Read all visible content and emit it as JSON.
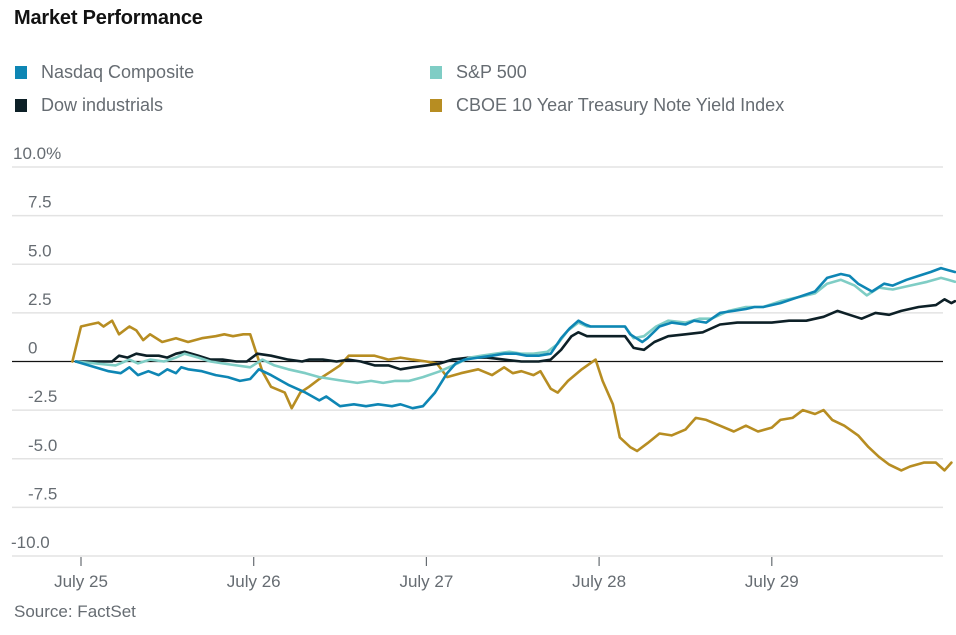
{
  "chart_data": {
    "type": "line",
    "title": "Market Performance",
    "source": "Source: FactSet",
    "xlabel": "",
    "ylabel": "",
    "ylim": [
      -10,
      10
    ],
    "yticks": [
      {
        "value": 10,
        "label": "10.0%"
      },
      {
        "value": 7.5,
        "label": "7.5"
      },
      {
        "value": 5,
        "label": "5.0"
      },
      {
        "value": 2.5,
        "label": "2.5"
      },
      {
        "value": 0,
        "label": "0"
      },
      {
        "value": -2.5,
        "label": "-2.5"
      },
      {
        "value": -5,
        "label": "-5.0"
      },
      {
        "value": -7.5,
        "label": "-7.5"
      },
      {
        "value": -10,
        "label": "-10.0"
      }
    ],
    "xlim": [
      -0.4,
      5.0
    ],
    "xticks": [
      {
        "value": 0,
        "label": "July 25"
      },
      {
        "value": 1,
        "label": "July 26"
      },
      {
        "value": 2,
        "label": "July 27"
      },
      {
        "value": 3,
        "label": "July 28"
      },
      {
        "value": 4,
        "label": "July 29"
      }
    ],
    "grid": true,
    "legend_position": "top",
    "series": [
      {
        "name": "Nasdaq Composite",
        "color": "#0e86b4",
        "points": [
          [
            -0.03,
            0
          ],
          [
            0.16,
            -0.5
          ],
          [
            0.23,
            -0.6
          ],
          [
            0.28,
            -0.3
          ],
          [
            0.33,
            -0.7
          ],
          [
            0.39,
            -0.5
          ],
          [
            0.45,
            -0.7
          ],
          [
            0.5,
            -0.4
          ],
          [
            0.55,
            -0.6
          ],
          [
            0.58,
            -0.3
          ],
          [
            0.62,
            -0.4
          ],
          [
            0.7,
            -0.5
          ],
          [
            0.78,
            -0.7
          ],
          [
            0.85,
            -0.8
          ],
          [
            0.92,
            -1.0
          ],
          [
            0.98,
            -0.9
          ],
          [
            1.03,
            -0.4
          ],
          [
            1.1,
            -0.7
          ],
          [
            1.2,
            -1.2
          ],
          [
            1.3,
            -1.6
          ],
          [
            1.38,
            -2.0
          ],
          [
            1.42,
            -1.8
          ],
          [
            1.5,
            -2.3
          ],
          [
            1.58,
            -2.2
          ],
          [
            1.65,
            -2.3
          ],
          [
            1.72,
            -2.2
          ],
          [
            1.8,
            -2.3
          ],
          [
            1.85,
            -2.2
          ],
          [
            1.92,
            -2.4
          ],
          [
            1.98,
            -2.3
          ],
          [
            2.05,
            -1.6
          ],
          [
            2.12,
            -0.6
          ],
          [
            2.17,
            -0.1
          ],
          [
            2.22,
            0.1
          ],
          [
            2.3,
            0.2
          ],
          [
            2.38,
            0.3
          ],
          [
            2.45,
            0.4
          ],
          [
            2.52,
            0.4
          ],
          [
            2.58,
            0.3
          ],
          [
            2.65,
            0.3
          ],
          [
            2.72,
            0.4
          ],
          [
            2.78,
            1.2
          ],
          [
            2.83,
            1.7
          ],
          [
            2.88,
            2.1
          ],
          [
            2.92,
            1.9
          ],
          [
            2.95,
            1.8
          ],
          [
            3.0,
            1.8
          ],
          [
            3.05,
            1.8
          ],
          [
            3.15,
            1.8
          ],
          [
            3.18,
            1.4
          ],
          [
            3.25,
            1.0
          ],
          [
            3.28,
            1.2
          ],
          [
            3.35,
            1.8
          ],
          [
            3.42,
            2.0
          ],
          [
            3.5,
            1.9
          ],
          [
            3.55,
            2.1
          ],
          [
            3.62,
            2.0
          ],
          [
            3.7,
            2.5
          ],
          [
            3.78,
            2.6
          ],
          [
            3.85,
            2.7
          ],
          [
            3.9,
            2.8
          ],
          [
            3.95,
            2.8
          ],
          [
            4.05,
            3.0
          ],
          [
            4.15,
            3.3
          ],
          [
            4.25,
            3.6
          ],
          [
            4.32,
            4.3
          ],
          [
            4.4,
            4.5
          ],
          [
            4.45,
            4.4
          ],
          [
            4.5,
            4.0
          ],
          [
            4.58,
            3.6
          ],
          [
            4.65,
            4.0
          ],
          [
            4.7,
            3.9
          ],
          [
            4.78,
            4.2
          ],
          [
            4.85,
            4.4
          ],
          [
            4.92,
            4.6
          ],
          [
            4.98,
            4.8
          ],
          [
            5.02,
            4.7
          ],
          [
            5.06,
            4.6
          ]
        ]
      },
      {
        "name": "S&P 500",
        "color": "#7fcdc5",
        "points": [
          [
            -0.03,
            0
          ],
          [
            0.2,
            -0.2
          ],
          [
            0.28,
            0.1
          ],
          [
            0.33,
            -0.1
          ],
          [
            0.4,
            0.1
          ],
          [
            0.48,
            0.0
          ],
          [
            0.55,
            0.2
          ],
          [
            0.6,
            0.4
          ],
          [
            0.68,
            0.2
          ],
          [
            0.75,
            0.0
          ],
          [
            0.82,
            -0.1
          ],
          [
            0.9,
            -0.2
          ],
          [
            0.98,
            -0.3
          ],
          [
            1.05,
            0.1
          ],
          [
            1.12,
            -0.2
          ],
          [
            1.2,
            -0.4
          ],
          [
            1.3,
            -0.6
          ],
          [
            1.38,
            -0.8
          ],
          [
            1.45,
            -0.9
          ],
          [
            1.52,
            -1.0
          ],
          [
            1.6,
            -1.1
          ],
          [
            1.68,
            -1.0
          ],
          [
            1.75,
            -1.1
          ],
          [
            1.82,
            -1.0
          ],
          [
            1.9,
            -1.0
          ],
          [
            1.98,
            -0.8
          ],
          [
            2.08,
            -0.5
          ],
          [
            2.18,
            -0.1
          ],
          [
            2.25,
            0.2
          ],
          [
            2.32,
            0.3
          ],
          [
            2.4,
            0.4
          ],
          [
            2.48,
            0.5
          ],
          [
            2.55,
            0.4
          ],
          [
            2.62,
            0.4
          ],
          [
            2.7,
            0.5
          ],
          [
            2.76,
            0.9
          ],
          [
            2.82,
            1.6
          ],
          [
            2.88,
            2.0
          ],
          [
            2.93,
            1.8
          ],
          [
            3.0,
            1.8
          ],
          [
            3.15,
            1.8
          ],
          [
            3.2,
            1.2
          ],
          [
            3.26,
            1.3
          ],
          [
            3.33,
            1.8
          ],
          [
            3.4,
            2.1
          ],
          [
            3.5,
            2.0
          ],
          [
            3.58,
            2.2
          ],
          [
            3.65,
            2.2
          ],
          [
            3.75,
            2.6
          ],
          [
            3.85,
            2.8
          ],
          [
            3.95,
            2.8
          ],
          [
            4.05,
            3.1
          ],
          [
            4.15,
            3.3
          ],
          [
            4.25,
            3.5
          ],
          [
            4.32,
            4.0
          ],
          [
            4.4,
            4.2
          ],
          [
            4.48,
            3.9
          ],
          [
            4.55,
            3.4
          ],
          [
            4.62,
            3.8
          ],
          [
            4.7,
            3.7
          ],
          [
            4.8,
            3.9
          ],
          [
            4.9,
            4.1
          ],
          [
            4.98,
            4.3
          ],
          [
            5.02,
            4.2
          ],
          [
            5.06,
            4.1
          ]
        ]
      },
      {
        "name": "Dow industrials",
        "color": "#0d2027",
        "points": [
          [
            -0.03,
            0
          ],
          [
            0.18,
            0.0
          ],
          [
            0.22,
            0.3
          ],
          [
            0.27,
            0.2
          ],
          [
            0.32,
            0.4
          ],
          [
            0.38,
            0.3
          ],
          [
            0.45,
            0.3
          ],
          [
            0.5,
            0.2
          ],
          [
            0.55,
            0.4
          ],
          [
            0.6,
            0.5
          ],
          [
            0.68,
            0.3
          ],
          [
            0.75,
            0.1
          ],
          [
            0.82,
            0.1
          ],
          [
            0.9,
            0.0
          ],
          [
            0.96,
            0.0
          ],
          [
            1.02,
            0.4
          ],
          [
            1.1,
            0.3
          ],
          [
            1.2,
            0.1
          ],
          [
            1.28,
            0.0
          ],
          [
            1.32,
            0.1
          ],
          [
            1.4,
            0.1
          ],
          [
            1.48,
            0.0
          ],
          [
            1.55,
            0.1
          ],
          [
            1.62,
            0.0
          ],
          [
            1.7,
            -0.2
          ],
          [
            1.78,
            -0.2
          ],
          [
            1.85,
            -0.4
          ],
          [
            1.92,
            -0.3
          ],
          [
            2.0,
            -0.2
          ],
          [
            2.08,
            -0.1
          ],
          [
            2.15,
            0.1
          ],
          [
            2.25,
            0.2
          ],
          [
            2.35,
            0.2
          ],
          [
            2.45,
            0.1
          ],
          [
            2.55,
            0.0
          ],
          [
            2.65,
            0.0
          ],
          [
            2.72,
            0.1
          ],
          [
            2.78,
            0.6
          ],
          [
            2.84,
            1.3
          ],
          [
            2.88,
            1.5
          ],
          [
            2.93,
            1.3
          ],
          [
            3.0,
            1.3
          ],
          [
            3.15,
            1.3
          ],
          [
            3.2,
            0.7
          ],
          [
            3.26,
            0.6
          ],
          [
            3.32,
            1.0
          ],
          [
            3.4,
            1.3
          ],
          [
            3.5,
            1.4
          ],
          [
            3.6,
            1.5
          ],
          [
            3.7,
            1.9
          ],
          [
            3.8,
            2.0
          ],
          [
            3.9,
            2.0
          ],
          [
            4.0,
            2.0
          ],
          [
            4.1,
            2.1
          ],
          [
            4.2,
            2.1
          ],
          [
            4.3,
            2.3
          ],
          [
            4.38,
            2.6
          ],
          [
            4.45,
            2.4
          ],
          [
            4.52,
            2.2
          ],
          [
            4.6,
            2.5
          ],
          [
            4.68,
            2.4
          ],
          [
            4.75,
            2.6
          ],
          [
            4.85,
            2.8
          ],
          [
            4.95,
            2.9
          ],
          [
            5.0,
            3.2
          ],
          [
            5.04,
            3.0
          ],
          [
            5.06,
            3.1
          ]
        ]
      },
      {
        "name": "CBOE 10 Year Treasury Note Yield Index",
        "color": "#b78d22",
        "points": [
          [
            -0.05,
            0
          ],
          [
            0.0,
            1.8
          ],
          [
            0.05,
            1.9
          ],
          [
            0.1,
            2.0
          ],
          [
            0.13,
            1.8
          ],
          [
            0.18,
            2.1
          ],
          [
            0.22,
            1.4
          ],
          [
            0.28,
            1.8
          ],
          [
            0.32,
            1.6
          ],
          [
            0.36,
            1.1
          ],
          [
            0.4,
            1.4
          ],
          [
            0.47,
            1.0
          ],
          [
            0.55,
            1.2
          ],
          [
            0.62,
            1.0
          ],
          [
            0.7,
            1.2
          ],
          [
            0.78,
            1.3
          ],
          [
            0.83,
            1.4
          ],
          [
            0.88,
            1.3
          ],
          [
            0.94,
            1.4
          ],
          [
            0.98,
            1.4
          ],
          [
            1.05,
            -0.5
          ],
          [
            1.1,
            -1.3
          ],
          [
            1.18,
            -1.6
          ],
          [
            1.22,
            -2.4
          ],
          [
            1.27,
            -1.6
          ],
          [
            1.32,
            -1.3
          ],
          [
            1.38,
            -0.9
          ],
          [
            1.45,
            -0.5
          ],
          [
            1.5,
            -0.2
          ],
          [
            1.55,
            0.3
          ],
          [
            1.6,
            0.3
          ],
          [
            1.7,
            0.3
          ],
          [
            1.78,
            0.1
          ],
          [
            1.85,
            0.2
          ],
          [
            1.92,
            0.1
          ],
          [
            2.0,
            0.0
          ],
          [
            2.06,
            -0.1
          ],
          [
            2.12,
            -0.8
          ],
          [
            2.2,
            -0.6
          ],
          [
            2.3,
            -0.4
          ],
          [
            2.38,
            -0.7
          ],
          [
            2.45,
            -0.3
          ],
          [
            2.5,
            -0.6
          ],
          [
            2.55,
            -0.5
          ],
          [
            2.62,
            -0.7
          ],
          [
            2.66,
            -0.5
          ],
          [
            2.72,
            -1.4
          ],
          [
            2.76,
            -1.6
          ],
          [
            2.82,
            -1.0
          ],
          [
            2.9,
            -0.4
          ],
          [
            2.98,
            0.1
          ],
          [
            3.02,
            -1.0
          ],
          [
            3.08,
            -2.2
          ],
          [
            3.12,
            -3.9
          ],
          [
            3.18,
            -4.4
          ],
          [
            3.22,
            -4.6
          ],
          [
            3.28,
            -4.2
          ],
          [
            3.35,
            -3.7
          ],
          [
            3.42,
            -3.8
          ],
          [
            3.5,
            -3.5
          ],
          [
            3.56,
            -2.9
          ],
          [
            3.62,
            -3.0
          ],
          [
            3.7,
            -3.3
          ],
          [
            3.78,
            -3.6
          ],
          [
            3.85,
            -3.3
          ],
          [
            3.92,
            -3.6
          ],
          [
            4.0,
            -3.4
          ],
          [
            4.05,
            -3.0
          ],
          [
            4.12,
            -2.9
          ],
          [
            4.18,
            -2.5
          ],
          [
            4.25,
            -2.7
          ],
          [
            4.3,
            -2.5
          ],
          [
            4.35,
            -3.0
          ],
          [
            4.42,
            -3.3
          ],
          [
            4.5,
            -3.8
          ],
          [
            4.56,
            -4.4
          ],
          [
            4.62,
            -4.9
          ],
          [
            4.68,
            -5.3
          ],
          [
            4.75,
            -5.6
          ],
          [
            4.8,
            -5.4
          ],
          [
            4.88,
            -5.2
          ],
          [
            4.95,
            -5.2
          ],
          [
            5.0,
            -5.6
          ],
          [
            5.04,
            -5.2
          ]
        ]
      }
    ]
  }
}
